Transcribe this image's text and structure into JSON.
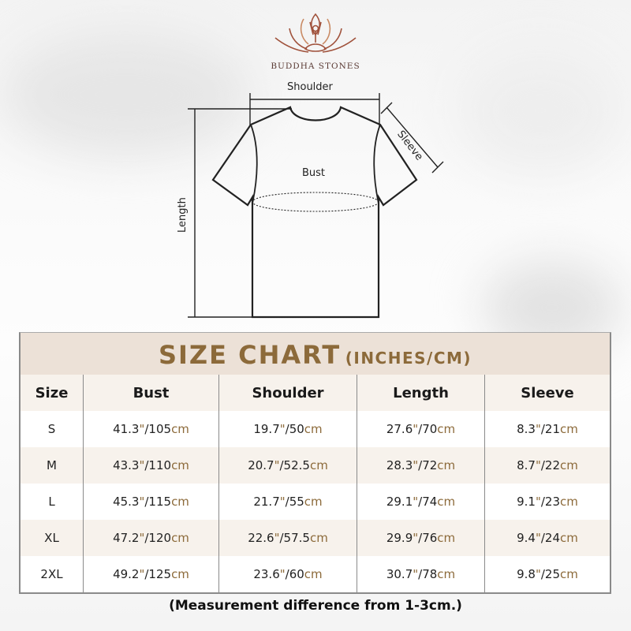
{
  "brand": {
    "name": "BUDDHA STONES"
  },
  "diagram": {
    "labels": {
      "shoulder": "Shoulder",
      "sleeve": "Sleeve",
      "bust": "Bust",
      "length": "Length"
    }
  },
  "size_chart": {
    "title": "SIZE CHART",
    "units": "(INCHES/CM)",
    "columns": [
      "Size",
      "Bust",
      "Shoulder",
      "Length",
      "Sleeve"
    ],
    "rows": [
      [
        "S",
        "41.3\"/105cm",
        "19.7\"/50cm",
        "27.6\"/70cm",
        "8.3\"/21cm"
      ],
      [
        "M",
        "43.3\"/110cm",
        "20.7\"/52.5cm",
        "28.3\"/72cm",
        "8.7\"/22cm"
      ],
      [
        "L",
        "45.3\"/115cm",
        "21.7\"/55cm",
        "29.1\"/74cm",
        "9.1\"/23cm"
      ],
      [
        "XL",
        "47.2\"/120cm",
        "22.6\"/57.5cm",
        "29.9\"/76cm",
        "9.4\"/24cm"
      ],
      [
        "2XL",
        "49.2\"/125cm",
        "23.6\"/60cm",
        "30.7\"/78cm",
        "9.8\"/25cm"
      ]
    ],
    "note": "(Measurement difference from 1-3cm.)"
  },
  "colors": {
    "accent": "#8c6a3a",
    "title_band": "#ece1d7",
    "alt_row": "#f7f2ec",
    "logo": "#a0523c"
  }
}
